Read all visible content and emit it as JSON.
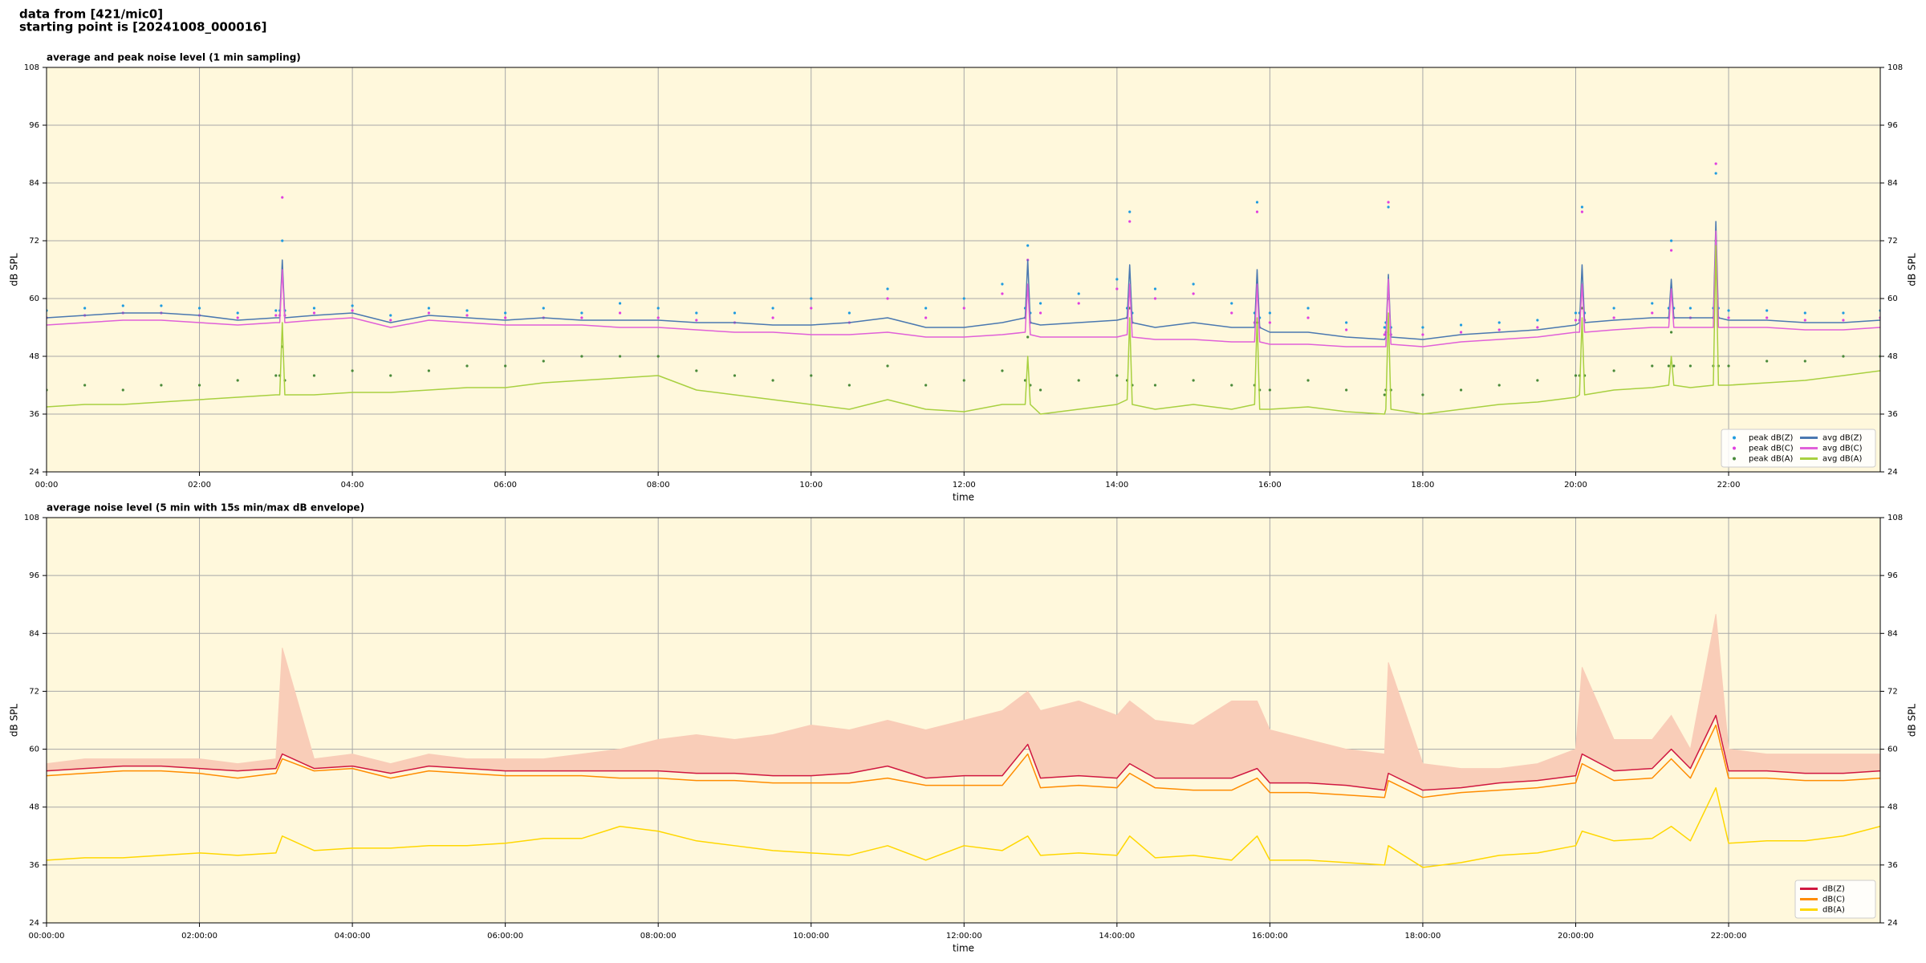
{
  "header": {
    "lines": [
      "data from [421/mic0]",
      "starting point is [20241008_000016]"
    ]
  },
  "chart_data": [
    {
      "type": "line",
      "title": "average and peak noise level (1 min sampling)",
      "xlabel": "time",
      "ylabel": "dB SPL",
      "background": "#fff8dc",
      "grid": true,
      "legend": "lower right",
      "legend_columns": 2,
      "xlim": [
        "00:00",
        "23:59"
      ],
      "xticks": [
        "00:00",
        "02:00",
        "04:00",
        "06:00",
        "08:00",
        "10:00",
        "12:00",
        "14:00",
        "16:00",
        "18:00",
        "20:00",
        "22:00"
      ],
      "ylim": [
        24,
        108
      ],
      "yticks": [
        24,
        36,
        48,
        60,
        72,
        84,
        96,
        108
      ],
      "x": [
        "00:00",
        "00:30",
        "01:00",
        "01:30",
        "02:00",
        "02:30",
        "03:00",
        "03:03",
        "03:05",
        "03:07",
        "03:30",
        "04:00",
        "04:30",
        "05:00",
        "05:30",
        "06:00",
        "06:30",
        "07:00",
        "07:30",
        "08:00",
        "08:30",
        "09:00",
        "09:30",
        "10:00",
        "10:30",
        "11:00",
        "11:30",
        "12:00",
        "12:30",
        "12:48",
        "12:50",
        "12:52",
        "13:00",
        "13:30",
        "14:00",
        "14:08",
        "14:10",
        "14:12",
        "14:30",
        "15:00",
        "15:30",
        "15:48",
        "15:50",
        "15:52",
        "16:00",
        "16:30",
        "17:00",
        "17:30",
        "17:31",
        "17:33",
        "17:35",
        "18:00",
        "18:30",
        "19:00",
        "19:30",
        "20:00",
        "20:03",
        "20:05",
        "20:07",
        "20:30",
        "21:00",
        "21:13",
        "21:15",
        "21:17",
        "21:30",
        "21:48",
        "21:50",
        "21:52",
        "22:00",
        "22:30",
        "23:00",
        "23:30",
        "23:59"
      ],
      "series": [
        {
          "name": "peak dB(Z)",
          "style": "dots",
          "color": "#1f9be0",
          "values": [
            57.5,
            58,
            58.5,
            58.5,
            58,
            57,
            57.5,
            57.5,
            72,
            57.5,
            58,
            58.5,
            56.5,
            58,
            57.5,
            57,
            58,
            57,
            59,
            58,
            57,
            57,
            58,
            60,
            57,
            62,
            58,
            60,
            63,
            58,
            71,
            57,
            59,
            61,
            64,
            58,
            78,
            57,
            62,
            63,
            59,
            57,
            80,
            56,
            57,
            58,
            55,
            54,
            55,
            79,
            54,
            54,
            54.5,
            55,
            55.5,
            57,
            57,
            79,
            57,
            58,
            59,
            58,
            72,
            58,
            58,
            58,
            86,
            58,
            57.5,
            57.5,
            57,
            57,
            57.5
          ]
        },
        {
          "name": "peak dB(C)",
          "style": "dots",
          "color": "#e040e0",
          "values": [
            56,
            56.5,
            57,
            57,
            56.5,
            56,
            56.5,
            56.5,
            81,
            56.5,
            57,
            57.5,
            55.5,
            57,
            56.5,
            56,
            56,
            56,
            57,
            56,
            55.5,
            55,
            56,
            58,
            55,
            60,
            56,
            58,
            61,
            56,
            68,
            55,
            57,
            59,
            62,
            56,
            76,
            55,
            60,
            61,
            57,
            55,
            78,
            54,
            55,
            56,
            53.5,
            52.5,
            53,
            80,
            52.5,
            52.5,
            53,
            53.5,
            54,
            55.5,
            55.5,
            78,
            55.5,
            56,
            57,
            56,
            70,
            56,
            56,
            56,
            88,
            56,
            56,
            56,
            55.5,
            55.5,
            56
          ]
        },
        {
          "name": "peak dB(A)",
          "style": "dots",
          "color": "#4a8a3a",
          "values": [
            41,
            42,
            41,
            42,
            42,
            43,
            44,
            44,
            50,
            43,
            44,
            45,
            44,
            45,
            46,
            46,
            47,
            48,
            48,
            48,
            45,
            44,
            43,
            44,
            42,
            46,
            42,
            43,
            45,
            43,
            52,
            42,
            41,
            43,
            44,
            43,
            58,
            42,
            42,
            43,
            42,
            42,
            55,
            41,
            41,
            43,
            41,
            40,
            41,
            60,
            41,
            40,
            41,
            42,
            43,
            44,
            44,
            58,
            44,
            45,
            46,
            46,
            53,
            46,
            46,
            46,
            72,
            46,
            46,
            47,
            47,
            48,
            48
          ]
        },
        {
          "name": "avg dB(Z)",
          "style": "line",
          "color": "#4a78b0",
          "values": [
            56,
            56.5,
            57,
            57,
            56.5,
            55.5,
            56,
            56,
            68,
            56,
            56.5,
            57,
            55,
            56.5,
            56,
            55.5,
            56,
            55.5,
            55.5,
            55.5,
            55,
            55,
            54.5,
            54.5,
            55,
            56,
            54,
            54,
            55,
            56,
            68,
            55,
            54.5,
            55,
            55.5,
            56,
            67,
            55,
            54,
            55,
            54,
            54,
            66,
            54,
            53,
            53,
            52,
            51.5,
            52,
            65,
            52,
            51.5,
            52.5,
            53,
            53.5,
            54.5,
            55,
            67,
            55,
            55.5,
            56,
            56,
            64,
            56,
            56,
            56,
            76,
            56,
            55.5,
            55.5,
            55,
            55,
            55.5
          ]
        },
        {
          "name": "avg dB(C)",
          "style": "line",
          "color": "#e060d8",
          "values": [
            54.5,
            55,
            55.5,
            55.5,
            55,
            54.5,
            55,
            55,
            66,
            55,
            55.5,
            56,
            54,
            55.5,
            55,
            54.5,
            54.5,
            54.5,
            54,
            54,
            53.5,
            53,
            53,
            52.5,
            52.5,
            53,
            52,
            52,
            52.5,
            53,
            63,
            52.5,
            52,
            52,
            52,
            52.5,
            63,
            52,
            51.5,
            51.5,
            51,
            51,
            63,
            51,
            50.5,
            50.5,
            50,
            50,
            50,
            64,
            50.5,
            50,
            51,
            51.5,
            52,
            53,
            53,
            63,
            53,
            53.5,
            54,
            54,
            62,
            54,
            54,
            54,
            74,
            54,
            54,
            54,
            53.5,
            53.5,
            54
          ]
        },
        {
          "name": "avg dB(A)",
          "style": "line",
          "color": "#a8d040",
          "values": [
            37.5,
            38,
            38,
            38.5,
            39,
            39.5,
            40,
            40,
            55,
            40,
            40,
            40.5,
            40.5,
            41,
            41.5,
            41.5,
            42.5,
            43,
            43.5,
            44,
            41,
            40,
            39,
            38,
            37,
            39,
            37,
            36.5,
            38,
            38,
            48,
            38,
            36,
            37,
            38,
            39,
            56,
            38,
            37,
            38,
            37,
            38,
            56,
            37,
            37,
            37.5,
            36.5,
            36,
            37,
            57,
            37,
            36,
            37,
            38,
            38.5,
            39.5,
            40,
            56,
            40,
            41,
            41.5,
            42,
            48,
            42,
            41.5,
            42,
            71,
            42,
            42,
            42.5,
            43,
            44,
            45
          ]
        }
      ]
    },
    {
      "type": "line",
      "title": "average noise level (5 min with 15s min/max dB envelope)",
      "xlabel": "time",
      "ylabel": "dB SPL",
      "background": "#fff8dc",
      "grid": true,
      "legend": "lower right",
      "legend_columns": 1,
      "xlim": [
        "00:00:00",
        "23:59:00"
      ],
      "xticks": [
        "00:00:00",
        "02:00:00",
        "04:00:00",
        "06:00:00",
        "08:00:00",
        "10:00:00",
        "12:00:00",
        "14:00:00",
        "16:00:00",
        "18:00:00",
        "20:00:00",
        "22:00:00"
      ],
      "ylim": [
        24,
        108
      ],
      "yticks": [
        24,
        36,
        48,
        60,
        72,
        84,
        96,
        108
      ],
      "x": [
        "00:00:00",
        "00:30:00",
        "01:00:00",
        "01:30:00",
        "02:00:00",
        "02:30:00",
        "03:00:00",
        "03:05:00",
        "03:30:00",
        "04:00:00",
        "04:30:00",
        "05:00:00",
        "05:30:00",
        "06:00:00",
        "06:30:00",
        "07:00:00",
        "07:30:00",
        "08:00:00",
        "08:30:00",
        "09:00:00",
        "09:30:00",
        "10:00:00",
        "10:30:00",
        "11:00:00",
        "11:30:00",
        "12:00:00",
        "12:30:00",
        "12:50:00",
        "13:00:00",
        "13:30:00",
        "14:00:00",
        "14:10:00",
        "14:30:00",
        "15:00:00",
        "15:30:00",
        "15:50:00",
        "16:00:00",
        "16:30:00",
        "17:00:00",
        "17:30:00",
        "17:33:00",
        "18:00:00",
        "18:30:00",
        "19:00:00",
        "19:30:00",
        "20:00:00",
        "20:05:00",
        "20:30:00",
        "21:00:00",
        "21:15:00",
        "21:30:00",
        "21:50:00",
        "22:00:00",
        "22:30:00",
        "23:00:00",
        "23:30:00",
        "23:59:00"
      ],
      "series": [
        {
          "name": "dB(Z)",
          "style": "line",
          "color": "#d01840",
          "values": [
            55.5,
            56,
            56.5,
            56.5,
            56,
            55.5,
            56,
            59,
            56,
            56.5,
            55,
            56.5,
            56,
            55.5,
            55.5,
            55.5,
            55.5,
            55.5,
            55,
            55,
            54.5,
            54.5,
            55,
            56.5,
            54,
            54.5,
            54.5,
            61,
            54,
            54.5,
            54,
            57,
            54,
            54,
            54,
            56,
            53,
            53,
            52.5,
            51.5,
            55,
            51.5,
            52,
            53,
            53.5,
            54.5,
            59,
            55.5,
            56,
            60,
            56,
            67,
            55.5,
            55.5,
            55,
            55,
            55.5
          ],
          "envelope": {
            "color": "#f9cdb8",
            "values": [
              57,
              58,
              58,
              58,
              58,
              57,
              58,
              81,
              58,
              59,
              57,
              59,
              58,
              58,
              58,
              59,
              60,
              62,
              63,
              62,
              63,
              65,
              64,
              66,
              64,
              66,
              68,
              72,
              68,
              70,
              67,
              70,
              66,
              65,
              70,
              70,
              64,
              62,
              60,
              59,
              78,
              57,
              56,
              56,
              57,
              60,
              77,
              62,
              62,
              67,
              60,
              88,
              60,
              59,
              59,
              59,
              59
            ]
          }
        },
        {
          "name": "dB(C)",
          "style": "line",
          "color": "#ff8c00",
          "values": [
            54.5,
            55,
            55.5,
            55.5,
            55,
            54,
            55,
            58,
            55.5,
            56,
            54,
            55.5,
            55,
            54.5,
            54.5,
            54.5,
            54,
            54,
            53.5,
            53.5,
            53,
            53,
            53,
            54,
            52.5,
            52.5,
            52.5,
            59,
            52,
            52.5,
            52,
            55,
            52,
            51.5,
            51.5,
            54,
            51,
            51,
            50.5,
            50,
            53.5,
            50,
            51,
            51.5,
            52,
            53,
            57,
            53.5,
            54,
            58,
            54,
            65,
            54,
            54,
            53.5,
            53.5,
            54
          ]
        },
        {
          "name": "dB(A)",
          "style": "line",
          "color": "#ffd700",
          "values": [
            37,
            37.5,
            37.5,
            38,
            38.5,
            38,
            38.5,
            42,
            39,
            39.5,
            39.5,
            40,
            40,
            40.5,
            41.5,
            41.5,
            44,
            43,
            41,
            40,
            39,
            38.5,
            38,
            40,
            37,
            40,
            39,
            42,
            38,
            38.5,
            38,
            42,
            37.5,
            38,
            37,
            42,
            37,
            37,
            36.5,
            36,
            40,
            35.5,
            36.5,
            38,
            38.5,
            40,
            43,
            41,
            41.5,
            44,
            41,
            52,
            40.5,
            41,
            41,
            42,
            44
          ]
        }
      ]
    }
  ]
}
